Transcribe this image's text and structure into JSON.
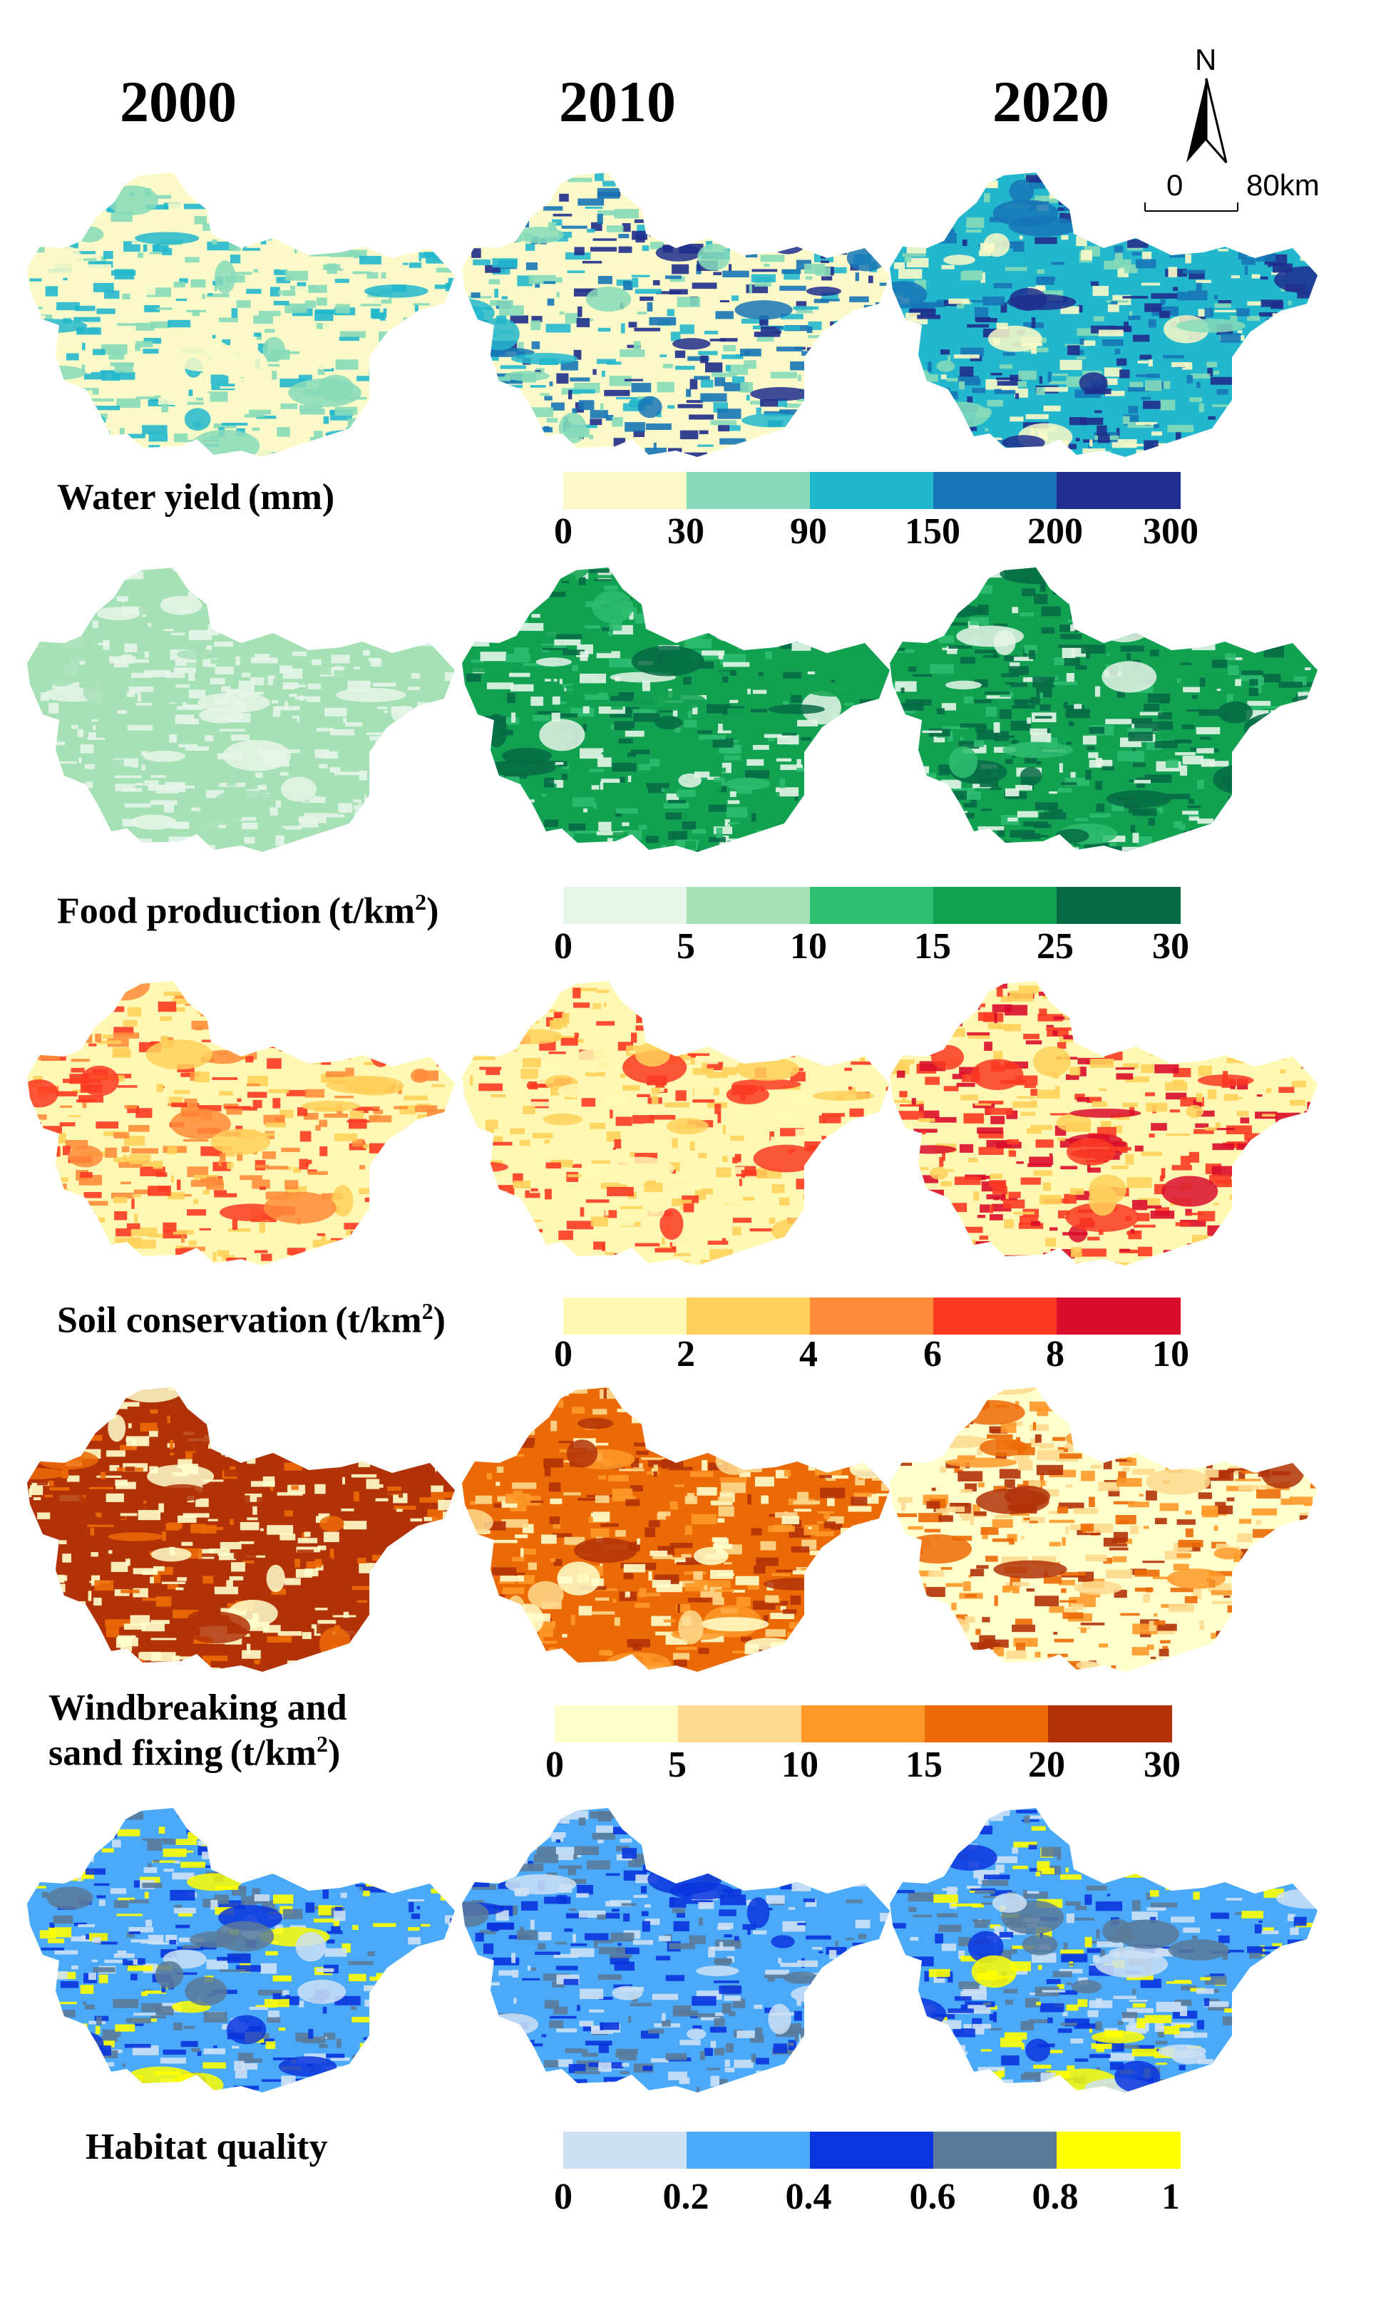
{
  "years": [
    "2000",
    "2010",
    "2020"
  ],
  "north": "N",
  "scale": {
    "zero": "0",
    "distance": "80km"
  },
  "rows": [
    {
      "id": "water-yield",
      "label_lines": [
        "Water yield (mm)"
      ],
      "sup": "",
      "ticks": [
        "0",
        "30",
        "90",
        "150",
        "200",
        "300"
      ],
      "colors": [
        "#fbf9c8",
        "#86dab9",
        "#22b7cd",
        "#1675b6",
        "#1f2e8c"
      ],
      "map_levels": [
        {
          "base": 0,
          "detail": [
            0,
            1,
            2
          ]
        },
        {
          "base": 0,
          "detail": [
            4,
            1,
            3,
            2
          ]
        },
        {
          "base": 2,
          "detail": [
            3,
            4,
            1,
            0
          ]
        }
      ]
    },
    {
      "id": "food-production",
      "label_lines": [
        "Food production (t/km"
      ],
      "sup": "2",
      "ticks": [
        "0",
        "5",
        "10",
        "15",
        "25",
        "30"
      ],
      "colors": [
        "#e6f5e9",
        "#a6e1b6",
        "#2fbd70",
        "#12a150",
        "#076a45"
      ],
      "map_levels": [
        {
          "base": 1,
          "detail": [
            0,
            1,
            0
          ]
        },
        {
          "base": 3,
          "detail": [
            4,
            0,
            2,
            3
          ]
        },
        {
          "base": 3,
          "detail": [
            4,
            0,
            2,
            4
          ]
        }
      ]
    },
    {
      "id": "soil-conservation",
      "label_lines": [
        "Soil conservation (t/km"
      ],
      "sup": "2",
      "ticks": [
        "0",
        "2",
        "4",
        "6",
        "8",
        "10"
      ],
      "colors": [
        "#fff8b4",
        "#ffd05a",
        "#fe8c3a",
        "#fc3a22",
        "#d90c2b"
      ],
      "map_levels": [
        {
          "base": 0,
          "detail": [
            1,
            2,
            3
          ]
        },
        {
          "base": 0,
          "detail": [
            1,
            3,
            0
          ]
        },
        {
          "base": 0,
          "detail": [
            1,
            3,
            4
          ]
        }
      ]
    },
    {
      "id": "windbreaking",
      "label_lines": [
        "Windbreaking and",
        "sand fixing (t/km"
      ],
      "sup": "2",
      "ticks": [
        "0",
        "5",
        "10",
        "15",
        "20",
        "30"
      ],
      "colors": [
        "#ffffcc",
        "#fed98e",
        "#fe9929",
        "#ec6a06",
        "#b23208"
      ],
      "map_levels": [
        {
          "base": 4,
          "detail": [
            0,
            3,
            0,
            4
          ]
        },
        {
          "base": 3,
          "detail": [
            0,
            2,
            4,
            1
          ]
        },
        {
          "base": 0,
          "detail": [
            1,
            3,
            2,
            4
          ]
        }
      ]
    },
    {
      "id": "habitat-quality",
      "label_lines": [
        "Habitat quality"
      ],
      "sup": "",
      "ticks": [
        "0",
        "0.2",
        "0.4",
        "0.6",
        "0.8",
        "1"
      ],
      "colors": [
        "#cde0f5",
        "#4aa9f8",
        "#0a35dd",
        "#5a7a9a",
        "#ffff00"
      ],
      "map_levels": [
        {
          "base": 1,
          "detail": [
            2,
            4,
            0,
            3
          ]
        },
        {
          "base": 1,
          "detail": [
            0,
            2,
            3
          ]
        },
        {
          "base": 1,
          "detail": [
            0,
            2,
            3,
            4
          ]
        }
      ]
    }
  ]
}
